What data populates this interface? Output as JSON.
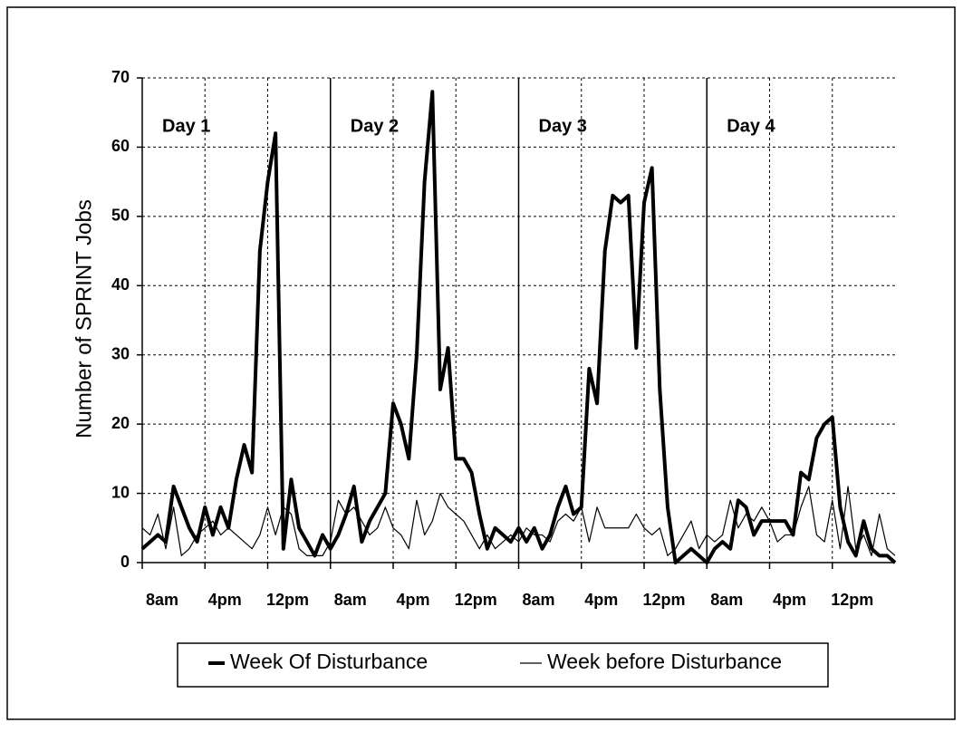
{
  "chart_data": {
    "type": "line",
    "y_label": "Number of SPRINT Jobs",
    "annotations": [
      "Day 1",
      "Day 2",
      "Day 3",
      "Day 4"
    ],
    "day_lines": [
      24,
      48,
      72
    ],
    "x": [
      0,
      1,
      2,
      3,
      4,
      5,
      6,
      7,
      8,
      9,
      10,
      11,
      12,
      13,
      14,
      15,
      16,
      17,
      18,
      19,
      20,
      21,
      22,
      23,
      24,
      25,
      26,
      27,
      28,
      29,
      30,
      31,
      32,
      33,
      34,
      35,
      36,
      37,
      38,
      39,
      40,
      41,
      42,
      43,
      44,
      45,
      46,
      47,
      48,
      49,
      50,
      51,
      52,
      53,
      54,
      55,
      56,
      57,
      58,
      59,
      60,
      61,
      62,
      63,
      64,
      65,
      66,
      67,
      68,
      69,
      70,
      71,
      72,
      73,
      74,
      75,
      76,
      77,
      78,
      79,
      80,
      81,
      82,
      83,
      84,
      85,
      86,
      87,
      88,
      89,
      90,
      91,
      92,
      93,
      94,
      95,
      96
    ],
    "series": [
      {
        "name": "Week Of Disturbance",
        "color": "#000000",
        "line_width": 4,
        "values": [
          2,
          3,
          4,
          3,
          11,
          8,
          5,
          3,
          8,
          4,
          8,
          5,
          12,
          17,
          13,
          45,
          55,
          62,
          2,
          12,
          5,
          3,
          1,
          4,
          2,
          4,
          7,
          11,
          3,
          6,
          8,
          10,
          23,
          20,
          15,
          30,
          55,
          68,
          25,
          31,
          15,
          15,
          13,
          7,
          2,
          5,
          4,
          3,
          5,
          3,
          5,
          2,
          4,
          8,
          11,
          7,
          8,
          28,
          23,
          45,
          53,
          52,
          53,
          31,
          52,
          57,
          25,
          8,
          0,
          1,
          2,
          1,
          0,
          2,
          3,
          2,
          9,
          8,
          4,
          6,
          6,
          6,
          6,
          4,
          13,
          12,
          18,
          20,
          21,
          8,
          3,
          1,
          6,
          2,
          1,
          1,
          0
        ]
      },
      {
        "name": "Week before Disturbance",
        "color": "#000000",
        "line_width": 1.2,
        "values": [
          5,
          4,
          7,
          2,
          8,
          1,
          2,
          4,
          5,
          6,
          4,
          5,
          4,
          3,
          2,
          4,
          8,
          4,
          8,
          7,
          2,
          1,
          1,
          1,
          3,
          9,
          7,
          8,
          6,
          4,
          5,
          8,
          5,
          4,
          2,
          9,
          4,
          6,
          10,
          8,
          7,
          6,
          4,
          2,
          4,
          2,
          3,
          4,
          3,
          5,
          4,
          4,
          3,
          6,
          7,
          6,
          8,
          3,
          8,
          5,
          5,
          5,
          5,
          7,
          5,
          4,
          5,
          1,
          2,
          4,
          6,
          2,
          4,
          3,
          4,
          9,
          5,
          7,
          6,
          8,
          6,
          3,
          4,
          4,
          8,
          11,
          4,
          3,
          9,
          2,
          11,
          2,
          4,
          1,
          7,
          2,
          1
        ]
      }
    ],
    "xlim": [
      0,
      96
    ],
    "xticks": [
      {
        "value": 0,
        "label": "8am"
      },
      {
        "value": 8,
        "label": "4pm"
      },
      {
        "value": 16,
        "label": "12pm"
      },
      {
        "value": 24,
        "label": "8am"
      },
      {
        "value": 32,
        "label": "4pm"
      },
      {
        "value": 40,
        "label": "12pm"
      },
      {
        "value": 48,
        "label": "8am"
      },
      {
        "value": 56,
        "label": "4pm"
      },
      {
        "value": 64,
        "label": "12pm"
      },
      {
        "value": 72,
        "label": "8am"
      },
      {
        "value": 80,
        "label": "4pm"
      },
      {
        "value": 88,
        "label": "12pm"
      }
    ],
    "ylim": [
      0,
      70
    ],
    "yticks": [
      0,
      10,
      20,
      30,
      40,
      50,
      60,
      70
    ],
    "grid": true
  }
}
